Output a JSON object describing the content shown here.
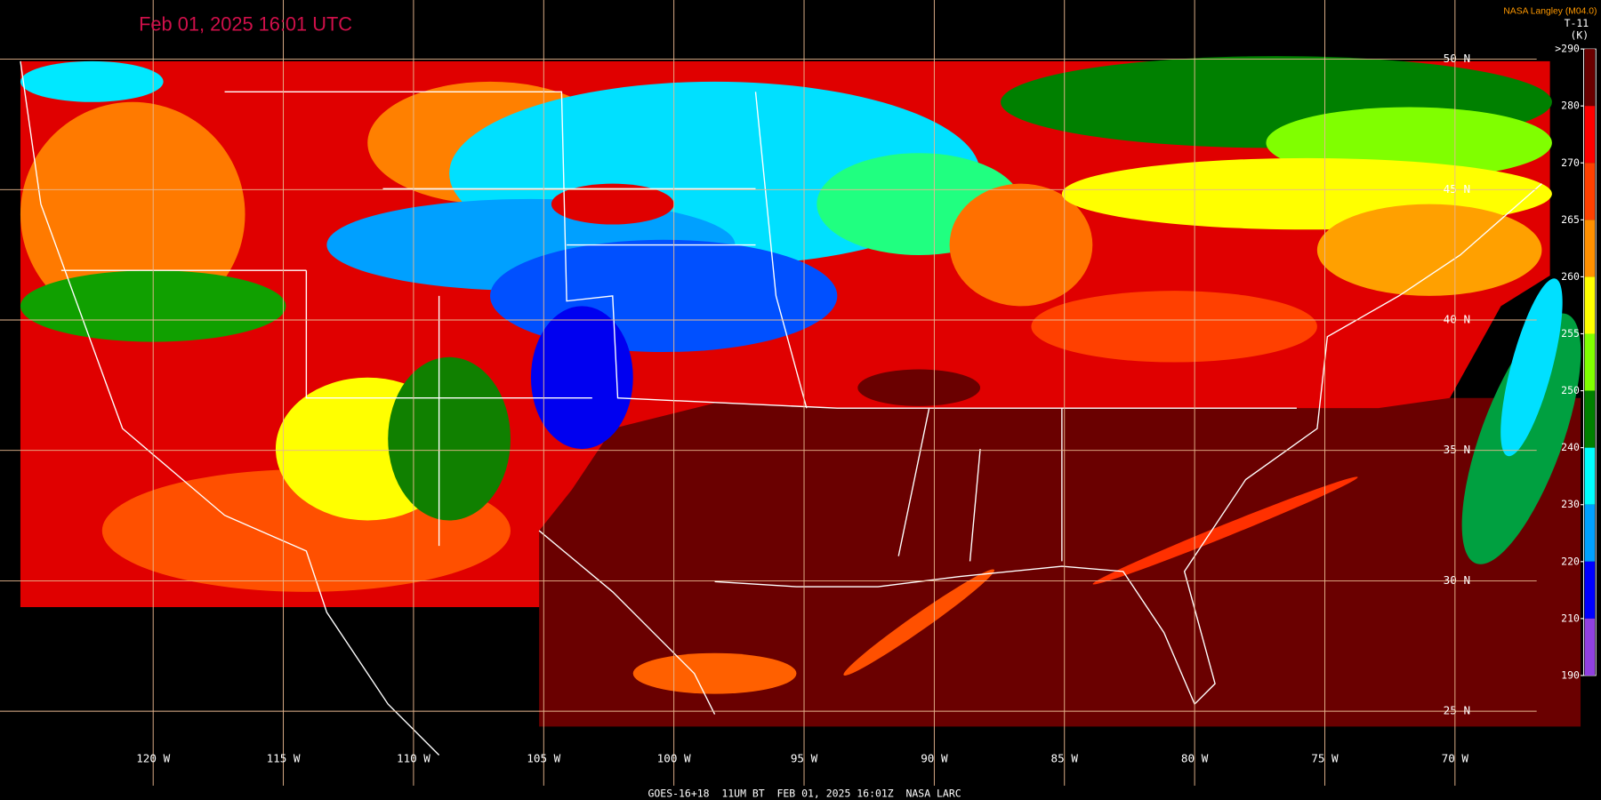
{
  "header": {
    "title": "Feb 01, 2025 16:01 UTC",
    "source": "NASA Langley (M04.0)"
  },
  "legend": {
    "channel": "T-11",
    "unit": "(K)",
    "ticks": [
      {
        "value": 290,
        "label": ">290"
      },
      280,
      270,
      265,
      260,
      255,
      250,
      240,
      230,
      220,
      210,
      190
    ]
  },
  "map": {
    "latitude_labels": [
      "50 N",
      "45 N",
      "40 N",
      "35 N",
      "30 N",
      "25 N"
    ],
    "longitude_labels": [
      "120 W",
      "115 W",
      "110 W",
      "105 W",
      "100 W",
      "95 W",
      "90 W",
      "85 W",
      "80 W",
      "75 W",
      "70 W"
    ]
  },
  "footer": "GOES-16+18  11UM BT  FEB 01, 2025 16:01Z  NASA LARC"
}
